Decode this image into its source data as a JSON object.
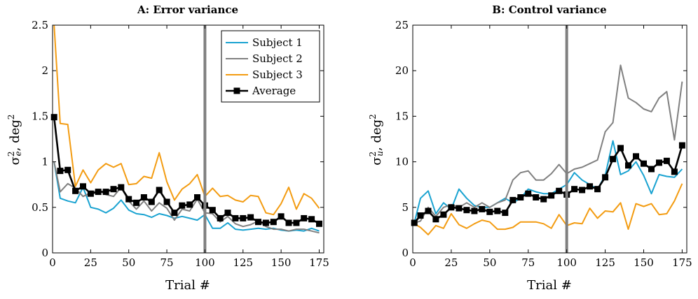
{
  "chart_data": [
    {
      "type": "line",
      "title": "A: Error variance",
      "xlabel": "Trial #",
      "ylabel": "σ²e, deg²",
      "xlim": [
        0,
        178
      ],
      "ylim": [
        0,
        2.5
      ],
      "xticks": [
        0,
        25,
        50,
        75,
        100,
        125,
        150,
        175
      ],
      "yticks": [
        0,
        0.5,
        1,
        1.5,
        2,
        2.5
      ],
      "ytick_labels": [
        "0",
        "0.5",
        "1",
        "1.5",
        "2",
        "2.5"
      ],
      "vline": 100,
      "legend_position": "top-right",
      "x": [
        1,
        5,
        10,
        15,
        20,
        25,
        30,
        35,
        40,
        45,
        50,
        55,
        60,
        65,
        70,
        75,
        80,
        85,
        90,
        95,
        100,
        105,
        110,
        115,
        120,
        125,
        130,
        135,
        140,
        145,
        150,
        155,
        160,
        165,
        170,
        175
      ],
      "series": [
        {
          "name": "Subject 1",
          "color": "#1aa3d1",
          "values": [
            1.0,
            0.6,
            0.57,
            0.55,
            0.72,
            0.5,
            0.48,
            0.44,
            0.49,
            0.58,
            0.47,
            0.43,
            0.42,
            0.39,
            0.43,
            0.41,
            0.38,
            0.4,
            0.38,
            0.36,
            0.42,
            0.27,
            0.27,
            0.33,
            0.26,
            0.25,
            0.26,
            0.27,
            0.26,
            0.27,
            0.25,
            0.24,
            0.25,
            0.24,
            0.27,
            0.24
          ]
        },
        {
          "name": "Subject 2",
          "color": "#808080",
          "values": [
            1.0,
            0.67,
            0.76,
            0.71,
            0.62,
            0.66,
            0.69,
            0.64,
            0.62,
            0.72,
            0.57,
            0.48,
            0.57,
            0.46,
            0.55,
            0.49,
            0.36,
            0.48,
            0.46,
            0.59,
            0.44,
            0.43,
            0.34,
            0.4,
            0.32,
            0.29,
            0.31,
            0.35,
            0.29,
            0.26,
            0.26,
            0.24,
            0.26,
            0.26,
            0.24,
            0.22
          ]
        },
        {
          "name": "Subject 3",
          "color": "#f39c12",
          "values": [
            2.5,
            1.42,
            1.41,
            0.73,
            0.91,
            0.77,
            0.91,
            0.98,
            0.94,
            0.98,
            0.75,
            0.76,
            0.84,
            0.82,
            1.1,
            0.78,
            0.58,
            0.7,
            0.76,
            0.86,
            0.62,
            0.71,
            0.62,
            0.63,
            0.58,
            0.56,
            0.63,
            0.62,
            0.44,
            0.42,
            0.54,
            0.72,
            0.48,
            0.65,
            0.6,
            0.49
          ]
        },
        {
          "name": "Average",
          "color": "#000000",
          "marker": "square",
          "values": [
            1.49,
            0.9,
            0.91,
            0.68,
            0.73,
            0.65,
            0.67,
            0.67,
            0.7,
            0.72,
            0.59,
            0.55,
            0.61,
            0.56,
            0.69,
            0.56,
            0.44,
            0.52,
            0.53,
            0.61,
            0.52,
            0.47,
            0.38,
            0.44,
            0.38,
            0.38,
            0.39,
            0.34,
            0.33,
            0.34,
            0.4,
            0.33,
            0.33,
            0.38,
            0.37,
            0.32
          ]
        }
      ]
    },
    {
      "type": "line",
      "title": "B: Control variance",
      "xlabel": "Trial #",
      "ylabel": "σ²u, deg²",
      "xlim": [
        0,
        178
      ],
      "ylim": [
        0,
        25
      ],
      "xticks": [
        0,
        25,
        50,
        75,
        100,
        125,
        150,
        175
      ],
      "yticks": [
        0,
        5,
        10,
        15,
        20,
        25
      ],
      "ytick_labels": [
        "0",
        "5",
        "10",
        "15",
        "20",
        "25"
      ],
      "vline": 100,
      "x": [
        1,
        5,
        10,
        15,
        20,
        25,
        30,
        35,
        40,
        45,
        50,
        55,
        60,
        65,
        70,
        75,
        80,
        85,
        90,
        95,
        100,
        105,
        110,
        115,
        120,
        125,
        130,
        135,
        140,
        145,
        150,
        155,
        160,
        165,
        170,
        175
      ],
      "series": [
        {
          "name": "Subject 1",
          "color": "#1aa3d1",
          "values": [
            3.3,
            6.0,
            6.8,
            4.3,
            5.5,
            4.8,
            7.0,
            6.0,
            5.2,
            5.0,
            5.0,
            5.5,
            6.0,
            5.5,
            6.0,
            7.0,
            6.7,
            6.5,
            6.5,
            7.0,
            7.5,
            8.8,
            8.0,
            7.5,
            7.0,
            8.5,
            12.3,
            8.6,
            9.0,
            10.0,
            8.5,
            6.5,
            8.6,
            8.4,
            8.3,
            9.2
          ]
        },
        {
          "name": "Subject 2",
          "color": "#808080",
          "values": [
            3.3,
            3.5,
            5.0,
            4.0,
            5.0,
            5.3,
            5.0,
            5.5,
            5.0,
            5.5,
            5.0,
            5.5,
            5.8,
            8.0,
            8.8,
            9.0,
            8.0,
            8.0,
            8.7,
            9.7,
            8.7,
            9.2,
            9.4,
            9.8,
            10.2,
            13.3,
            14.3,
            20.6,
            17.0,
            16.5,
            15.8,
            15.5,
            17.0,
            17.7,
            12.4,
            18.8
          ]
        },
        {
          "name": "Subject 3",
          "color": "#f39c12",
          "values": [
            3.2,
            2.8,
            2.0,
            3.0,
            2.7,
            4.3,
            3.1,
            2.7,
            3.2,
            3.6,
            3.4,
            2.6,
            2.6,
            2.8,
            3.4,
            3.4,
            3.4,
            3.2,
            2.7,
            4.2,
            3.0,
            3.3,
            3.2,
            4.9,
            3.8,
            4.6,
            4.5,
            5.5,
            2.6,
            5.4,
            5.1,
            5.4,
            4.2,
            4.3,
            5.7,
            7.6
          ]
        },
        {
          "name": "Average",
          "color": "#000000",
          "marker": "square",
          "values": [
            3.3,
            4.1,
            4.6,
            3.7,
            4.2,
            5.0,
            4.9,
            4.7,
            4.6,
            4.8,
            4.5,
            4.6,
            4.4,
            5.8,
            6.1,
            6.5,
            6.1,
            5.9,
            6.3,
            6.8,
            6.4,
            7.0,
            6.9,
            7.3,
            7.0,
            8.3,
            10.3,
            11.5,
            9.6,
            10.6,
            9.8,
            9.2,
            9.9,
            10.1,
            8.9,
            11.8
          ]
        }
      ]
    }
  ]
}
